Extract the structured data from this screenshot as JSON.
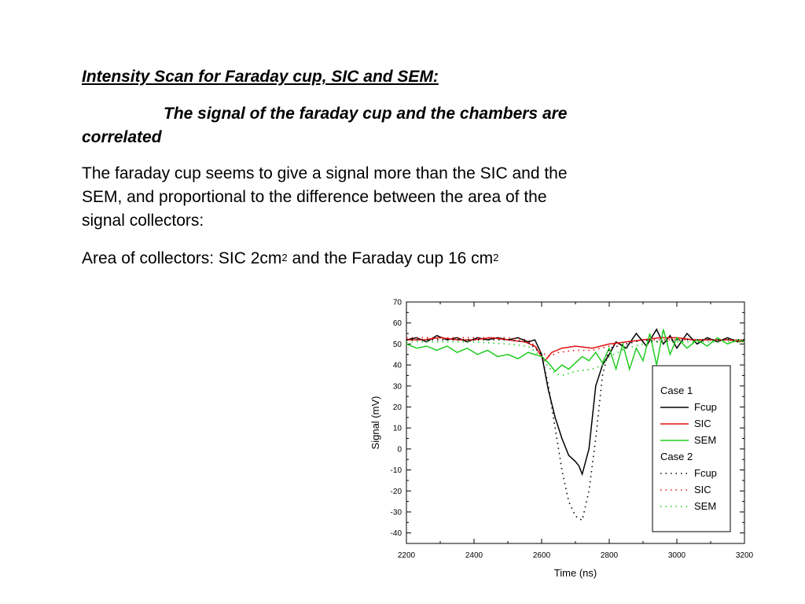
{
  "slide": {
    "title": "Intensity Scan for Faraday cup, SIC and SEM:",
    "subtitle": "The signal of the faraday cup and the chambers are correlated",
    "para1": "The faraday cup seems to give a signal more than the SIC and the SEM, and proportional to the difference between the area of the signal collectors:",
    "para2_a": "Area of collectors: SIC 2cm",
    "para2_sup1": "2",
    "para2_b": " and the Faraday cup 16 cm",
    "para2_sup2": "2"
  },
  "chart_data": {
    "type": "line",
    "xlabel": "Time (ns)",
    "ylabel": "Signal (mV)",
    "xlim": [
      2200,
      3200
    ],
    "ylim": [
      -45,
      70
    ],
    "xticks": [
      2200,
      2400,
      2600,
      2800,
      3000,
      3200
    ],
    "yticks": [
      70,
      60,
      50,
      40,
      30,
      20,
      10,
      0,
      -10,
      -20,
      -30,
      -40
    ],
    "grid": false,
    "legend_position": "right",
    "legend_groups": [
      "Case 1",
      "Case 2"
    ],
    "series": [
      {
        "name": "Fcup",
        "group": "Case 1",
        "color": "#000000",
        "dash": "solid",
        "x": [
          2200,
          2230,
          2260,
          2290,
          2320,
          2350,
          2380,
          2410,
          2440,
          2470,
          2500,
          2530,
          2560,
          2580,
          2600,
          2620,
          2640,
          2660,
          2680,
          2700,
          2710,
          2720,
          2740,
          2760,
          2780,
          2800,
          2820,
          2850,
          2880,
          2910,
          2940,
          2960,
          2980,
          3000,
          3030,
          3060,
          3090,
          3120,
          3150,
          3180,
          3200
        ],
        "y": [
          52,
          53,
          51,
          54,
          52,
          53,
          51,
          53,
          52,
          53,
          52,
          53,
          51,
          52,
          45,
          28,
          15,
          5,
          -3,
          -6,
          -8,
          -12,
          0,
          30,
          40,
          45,
          51,
          48,
          55,
          49,
          57,
          50,
          54,
          48,
          55,
          50,
          53,
          51,
          53,
          51,
          52
        ]
      },
      {
        "name": "SIC",
        "group": "Case 1",
        "color": "#e01010",
        "dash": "solid",
        "x": [
          2200,
          2250,
          2300,
          2350,
          2400,
          2450,
          2500,
          2550,
          2580,
          2600,
          2610,
          2630,
          2660,
          2700,
          2750,
          2800,
          2850,
          2900,
          2950,
          3000,
          3050,
          3100,
          3150,
          3200
        ],
        "y": [
          52,
          52,
          53,
          52,
          52,
          53,
          52,
          51,
          49,
          44,
          42,
          46,
          48,
          49,
          48,
          50,
          51,
          52,
          53,
          53,
          52,
          52,
          52,
          51
        ]
      },
      {
        "name": "SEM",
        "group": "Case 1",
        "color": "#20cc20",
        "dash": "solid",
        "x": [
          2200,
          2230,
          2260,
          2290,
          2320,
          2350,
          2380,
          2410,
          2440,
          2470,
          2500,
          2530,
          2560,
          2600,
          2620,
          2640,
          2660,
          2680,
          2700,
          2720,
          2740,
          2760,
          2780,
          2800,
          2820,
          2840,
          2860,
          2880,
          2900,
          2920,
          2940,
          2960,
          2980,
          3000,
          3030,
          3060,
          3090,
          3120,
          3150,
          3180,
          3200
        ],
        "y": [
          50,
          48,
          49,
          47,
          49,
          46,
          48,
          45,
          47,
          44,
          45,
          43,
          46,
          44,
          41,
          37,
          40,
          38,
          41,
          44,
          42,
          46,
          41,
          48,
          38,
          50,
          38,
          48,
          42,
          55,
          40,
          57,
          45,
          53,
          48,
          52,
          49,
          53,
          50,
          52,
          51
        ]
      },
      {
        "name": "Fcup",
        "group": "Case 2",
        "color": "#000000",
        "dash": "dotted",
        "x": [
          2200,
          2300,
          2400,
          2500,
          2560,
          2600,
          2620,
          2640,
          2660,
          2680,
          2700,
          2720,
          2740,
          2760,
          2780,
          2800,
          2850,
          2900,
          2950,
          3000,
          3100,
          3200
        ],
        "y": [
          52,
          52,
          52,
          52,
          51,
          45,
          30,
          10,
          -10,
          -25,
          -32,
          -34,
          -20,
          5,
          35,
          48,
          50,
          52,
          51,
          52,
          52,
          52
        ]
      },
      {
        "name": "SIC",
        "group": "Case 2",
        "color": "#e01010",
        "dash": "dotted",
        "x": [
          2200,
          2300,
          2400,
          2500,
          2560,
          2600,
          2620,
          2650,
          2700,
          2750,
          2800,
          2850,
          2900,
          2950,
          3000,
          3100,
          3200
        ],
        "y": [
          53,
          53,
          53,
          53,
          52,
          46,
          44,
          46,
          47,
          47,
          49,
          51,
          52,
          52,
          52,
          52,
          52
        ]
      },
      {
        "name": "SEM",
        "group": "Case 2",
        "color": "#20cc20",
        "dash": "dotted",
        "x": [
          2200,
          2300,
          2400,
          2500,
          2560,
          2600,
          2620,
          2640,
          2660,
          2700,
          2750,
          2780,
          2800,
          2850,
          2900,
          2950,
          3000,
          3100,
          3200
        ],
        "y": [
          51,
          51,
          51,
          50,
          49,
          44,
          39,
          36,
          35,
          37,
          38,
          40,
          44,
          48,
          50,
          51,
          51,
          51,
          51
        ]
      }
    ]
  }
}
